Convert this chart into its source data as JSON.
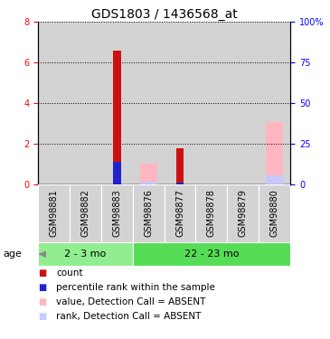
{
  "title": "GDS1803 / 1436568_at",
  "samples": [
    "GSM98881",
    "GSM98882",
    "GSM98883",
    "GSM98876",
    "GSM98877",
    "GSM98878",
    "GSM98879",
    "GSM98880"
  ],
  "groups": [
    {
      "label": "2 - 3 mo",
      "indices": [
        0,
        1,
        2
      ],
      "color": "#90EE90"
    },
    {
      "label": "22 - 23 mo",
      "indices": [
        3,
        4,
        5,
        6,
        7
      ],
      "color": "#55DD55"
    }
  ],
  "red_values": [
    0.0,
    0.0,
    6.6,
    0.0,
    1.8,
    0.0,
    0.0,
    0.0
  ],
  "blue_values": [
    0.0,
    0.0,
    14.0,
    0.0,
    1.5,
    0.0,
    0.0,
    0.0
  ],
  "pink_values": [
    0.0,
    0.0,
    0.0,
    1.05,
    0.0,
    0.0,
    0.0,
    3.1
  ],
  "lavender_values": [
    0.0,
    0.0,
    0.0,
    1.8,
    0.0,
    0.0,
    0.0,
    5.5
  ],
  "ylim_left": [
    0,
    8
  ],
  "ylim_right": [
    0,
    100
  ],
  "yticks_left": [
    0,
    2,
    4,
    6,
    8
  ],
  "yticks_right": [
    0,
    25,
    50,
    75,
    100
  ],
  "ytick_labels_right": [
    "0",
    "25",
    "50",
    "75",
    "100%"
  ],
  "red_color": "#CC1111",
  "blue_color": "#2222CC",
  "pink_color": "#FFB6C1",
  "lavender_color": "#C8C8FF",
  "bar_bg_color": "#D3D3D3",
  "group1_color": "#90EE90",
  "group2_color": "#55DD55",
  "age_label": "age",
  "legend_items": [
    {
      "color": "#CC1111",
      "label": "count"
    },
    {
      "color": "#2222CC",
      "label": "percentile rank within the sample"
    },
    {
      "color": "#FFB6C1",
      "label": "value, Detection Call = ABSENT"
    },
    {
      "color": "#C8C8FF",
      "label": "rank, Detection Call = ABSENT"
    }
  ],
  "title_fontsize": 10,
  "tick_fontsize": 7,
  "label_fontsize": 8,
  "legend_fontsize": 7.5,
  "red_bar_width": 0.25,
  "wide_bar_width": 0.55
}
